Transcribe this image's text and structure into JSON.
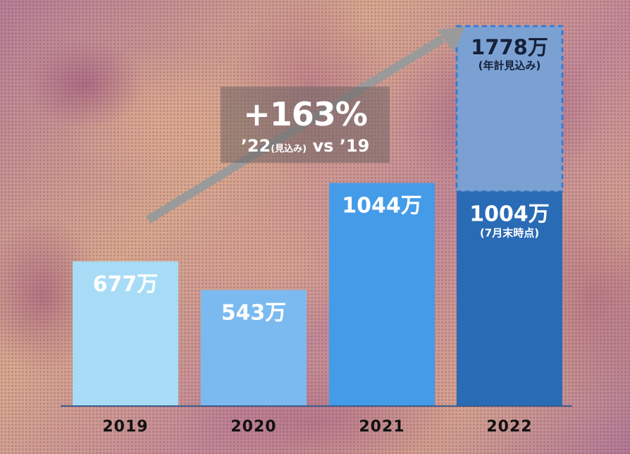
{
  "chart_data": {
    "type": "bar",
    "categories": [
      "2019",
      "2020",
      "2021",
      "2022"
    ],
    "values": [
      677,
      543,
      1044,
      1004
    ],
    "data_labels": [
      "677万",
      "543万",
      "1044万",
      "1004万"
    ],
    "sub_labels": [
      "",
      "",
      "",
      "(7月末時点)"
    ],
    "projection": {
      "category": "2022",
      "value": 1778,
      "label": "1778万",
      "sub_label": "(年計見込み)",
      "style": "dashed"
    },
    "ylim": [
      0,
      1900
    ],
    "colors": [
      "#a8dcf6",
      "#7bbaf0",
      "#449ce8",
      "#2a6bb5"
    ],
    "projection_color": "#7ba1d3",
    "title": "",
    "xlabel": "",
    "ylabel": "",
    "grid": false,
    "legend": "none"
  },
  "callout": {
    "value": "+163%",
    "comparison_main": "’22",
    "comparison_note": "(見込み)",
    "comparison_tail": " vs ’19"
  }
}
